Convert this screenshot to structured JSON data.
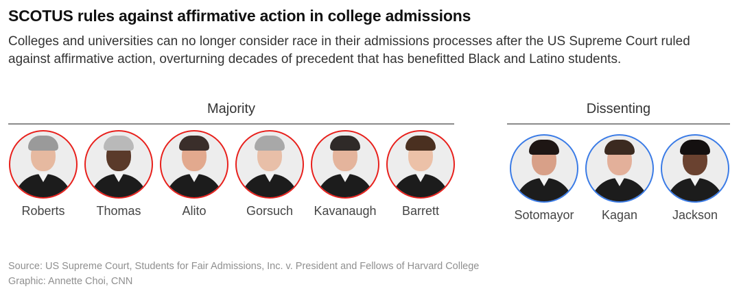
{
  "title": "SCOTUS rules against affirmative action in college admissions",
  "subtitle": "Colleges and universities can no longer consider race in their admissions processes after the US Supreme Court ruled against affirmative action, overturning decades of precedent that has benefitted Black and Latino students.",
  "colors": {
    "majority": "#e8201c",
    "dissenting": "#3a7be6"
  },
  "majority": {
    "label": "Majority",
    "justices": [
      {
        "name": "Roberts",
        "hair": "#9a9a9a",
        "skin": "#e6b9a0"
      },
      {
        "name": "Thomas",
        "hair": "#b9b9b9",
        "skin": "#5a3a2a"
      },
      {
        "name": "Alito",
        "hair": "#3a2e2a",
        "skin": "#e2a98e"
      },
      {
        "name": "Gorsuch",
        "hair": "#a8a8a8",
        "skin": "#e8bfa8"
      },
      {
        "name": "Kavanaugh",
        "hair": "#2f2a28",
        "skin": "#e4b49c"
      },
      {
        "name": "Barrett",
        "hair": "#4a3020",
        "skin": "#ecc1a8"
      }
    ]
  },
  "dissenting": {
    "label": "Dissenting",
    "justices": [
      {
        "name": "Sotomayor",
        "hair": "#1e1614",
        "skin": "#d8a088"
      },
      {
        "name": "Kagan",
        "hair": "#3b2a20",
        "skin": "#e3b09a"
      },
      {
        "name": "Jackson",
        "hair": "#141010",
        "skin": "#6a4230"
      }
    ]
  },
  "source": "Source: US Supreme Court, Students for Fair Admissions, Inc. v. President and Fellows of Harvard College",
  "credit": "Graphic: Annette Choi, CNN"
}
